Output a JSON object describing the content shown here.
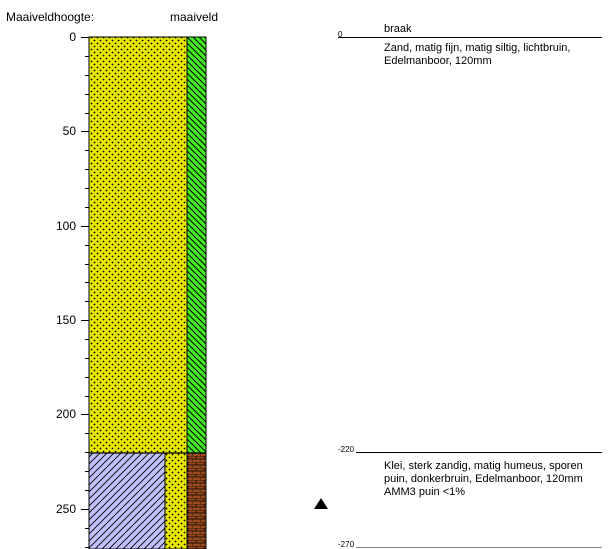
{
  "header": {
    "left_label": "Maaiveldhoogte:",
    "right_label": "maaiveld"
  },
  "axis": {
    "unit": "cm",
    "min": 0,
    "max": 270,
    "major_step": 50,
    "minor_step": 10,
    "ticks": [
      "0",
      "50",
      "100",
      "150",
      "200",
      "250"
    ]
  },
  "layers": [
    {
      "top": 0,
      "bottom": 220,
      "top_label": "0",
      "bottom_label": "-220",
      "top_note": "braak",
      "description": "Zand, matig fijn, matig siltig, lichtbruin, Edelmanboor, 120mm",
      "fill_color": "#e6e600",
      "side_color": "#44ee22"
    },
    {
      "top": 220,
      "bottom": 270,
      "top_label": "-220",
      "bottom_label": "-270",
      "description": "Klei, sterk zandig, matig humeus, sporen puin, donkerbruin, Edelmanboor, 120mm AMM3 puin <1%",
      "fill_color": "#c0c0ff",
      "side_color": "#9a4a1c",
      "marker": "triangle-up"
    }
  ],
  "colors": {
    "sand": "#e6e600",
    "clay": "#c0c0ff",
    "organic_strip": "#44ee22",
    "brick_strip": "#9a4a1c"
  }
}
